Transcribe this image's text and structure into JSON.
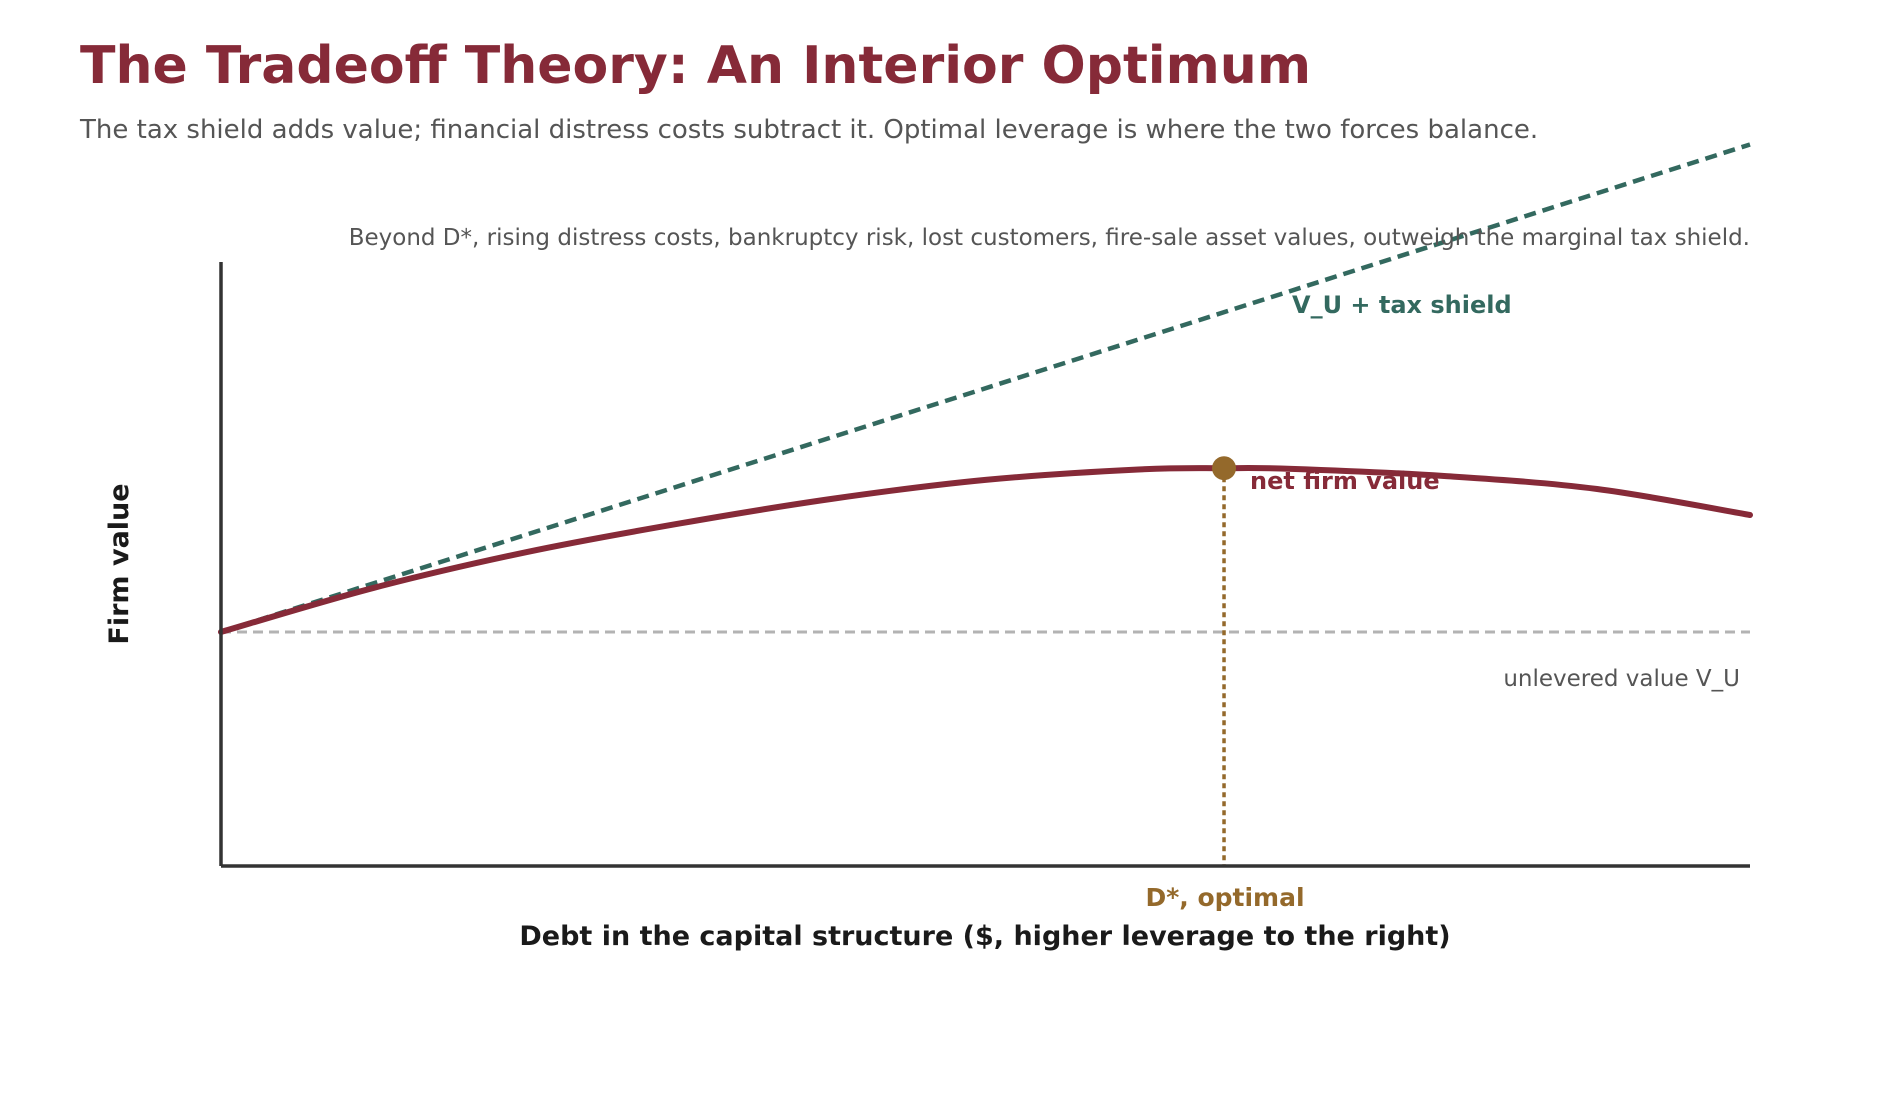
{
  "header": {
    "title": "The Tradeoff Theory: An Interior Optimum",
    "subtitle": "The tax shield adds value; financial distress costs subtract it. Optimal leverage is where the two forces balance."
  },
  "colors": {
    "net_value": "#862a38",
    "tax_shield": "#33695f",
    "optimum": "#94692b",
    "unlevered": "#b3b3b3",
    "axis": "#333333",
    "muted_text": "#555555"
  },
  "chart_data": {
    "type": "line",
    "title": "The Tradeoff Theory: An Interior Optimum",
    "xlabel": "Debt in the capital structure ($, higher leverage to the right)",
    "ylabel": "Firm value",
    "xlim": [
      0,
      1
    ],
    "ylim": [
      0,
      1
    ],
    "grid": false,
    "series": [
      {
        "name": "V_U + tax shield",
        "style": "dashed",
        "color": "#33695f",
        "x": [
          0,
          1
        ],
        "y": [
          0.36,
          1.11
        ]
      },
      {
        "name": "net firm value",
        "style": "solid",
        "color": "#862a38",
        "x": [
          0,
          0.1,
          0.2,
          0.3,
          0.4,
          0.5,
          0.6,
          0.656,
          0.7,
          0.8,
          0.9,
          1.0
        ],
        "y": [
          0.36,
          0.428,
          0.483,
          0.527,
          0.565,
          0.594,
          0.61,
          0.612,
          0.611,
          0.6,
          0.58,
          0.54
        ]
      },
      {
        "name": "unlevered value V_U",
        "style": "dashed",
        "color": "#b3b3b3",
        "x": [
          0,
          1
        ],
        "y": [
          0.36,
          0.36
        ]
      }
    ],
    "optimum": {
      "x": 0.656,
      "y": 0.612,
      "label": "D*, optimal"
    },
    "annotations": {
      "note": "Beyond D*, rising distress costs, bankruptcy risk, lost customers, fire-sale asset values, outweigh the marginal tax shield.",
      "tax_shield_label": "V_U + tax shield",
      "net_label": "net firm value",
      "unlevered_label": "unlevered value V_U"
    }
  }
}
